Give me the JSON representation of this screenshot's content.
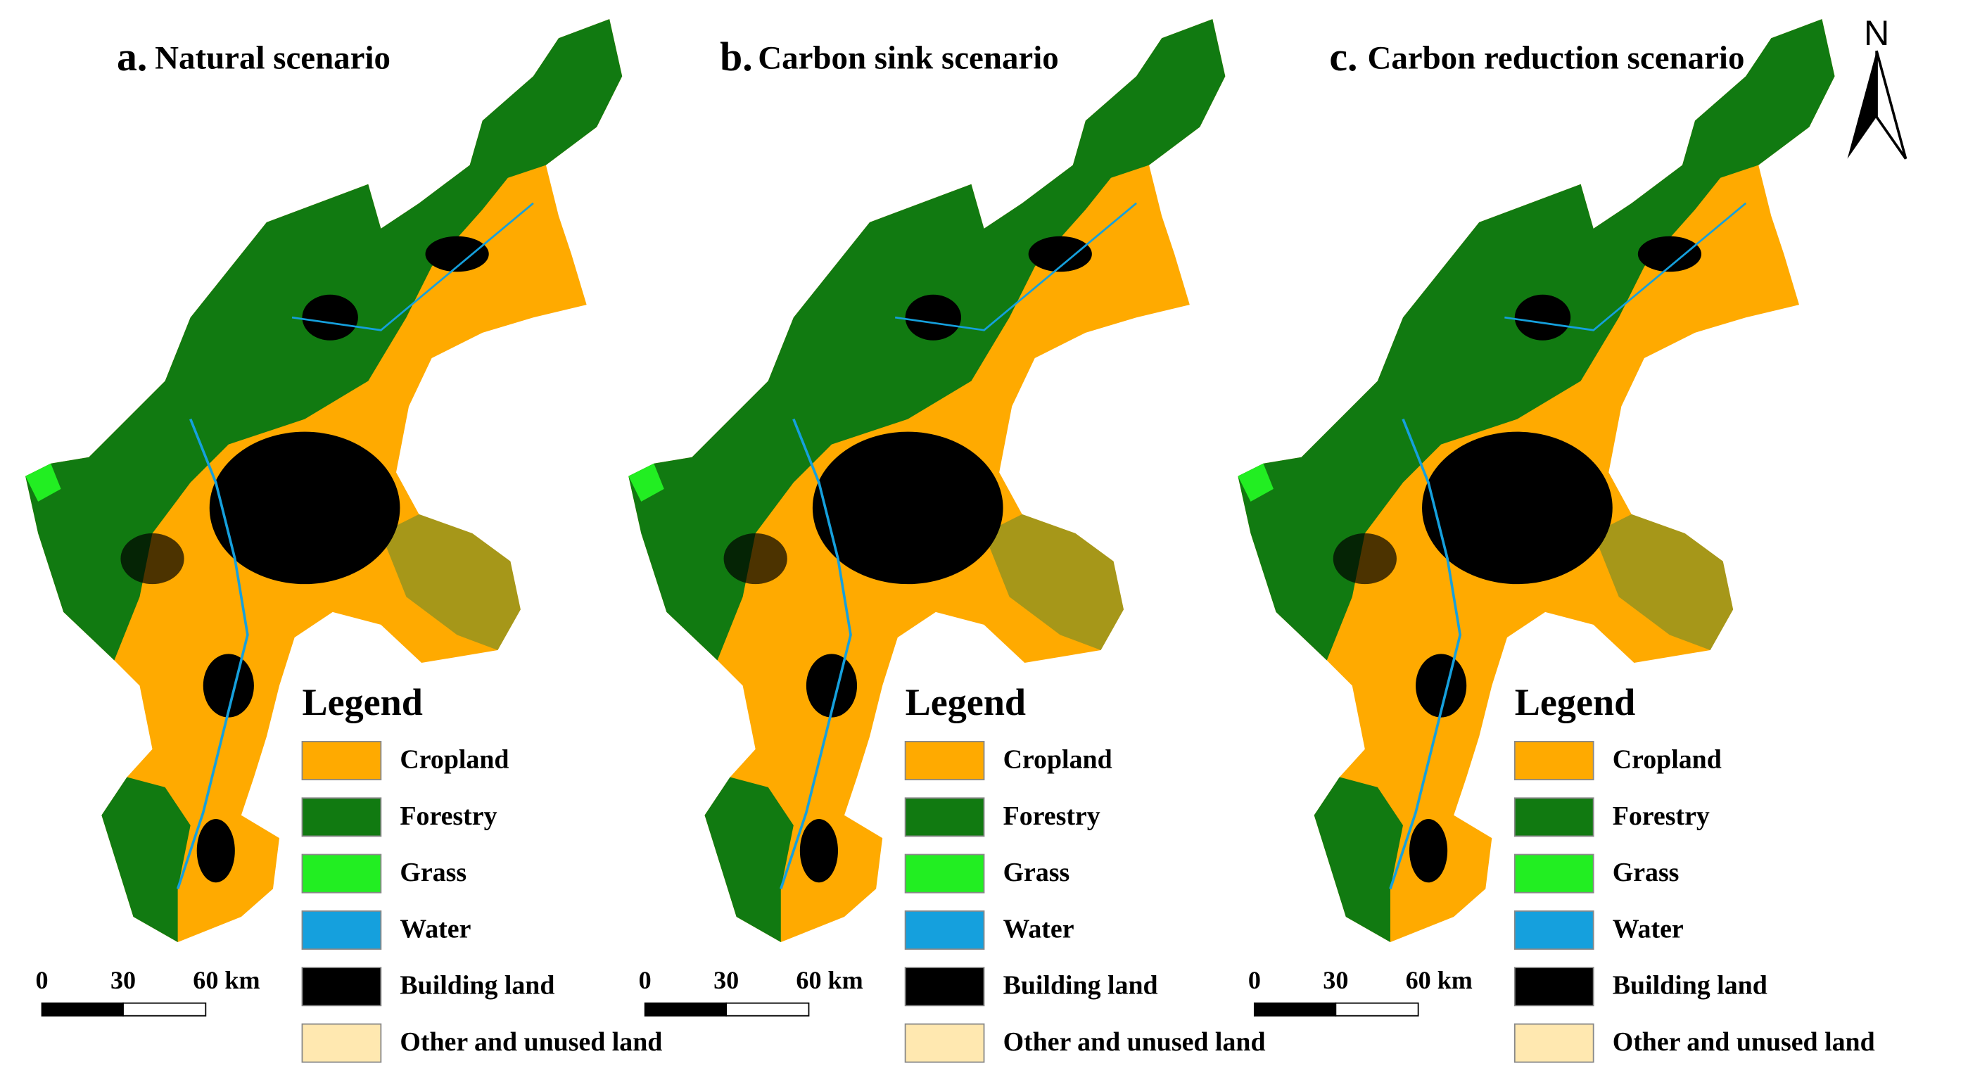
{
  "north_label": "N",
  "panels": [
    {
      "letter": "a.",
      "title": "Natural scenario"
    },
    {
      "letter": "b.",
      "title": "Carbon sink scenario"
    },
    {
      "letter": "c.",
      "title": "Carbon reduction scenario"
    }
  ],
  "legend": {
    "title": "Legend",
    "items": [
      {
        "label": "Cropland",
        "color": "#ffaa00"
      },
      {
        "label": "Forestry",
        "color": "#117a11"
      },
      {
        "label": "Grass",
        "color": "#22ee22"
      },
      {
        "label": "Water",
        "color": "#15a0dd"
      },
      {
        "label": "Building land",
        "color": "#000000"
      },
      {
        "label": "Other and unused land",
        "color": "#ffe8b0"
      }
    ]
  },
  "scale_bar": {
    "labels": [
      "0",
      "30",
      "60 km"
    ]
  }
}
